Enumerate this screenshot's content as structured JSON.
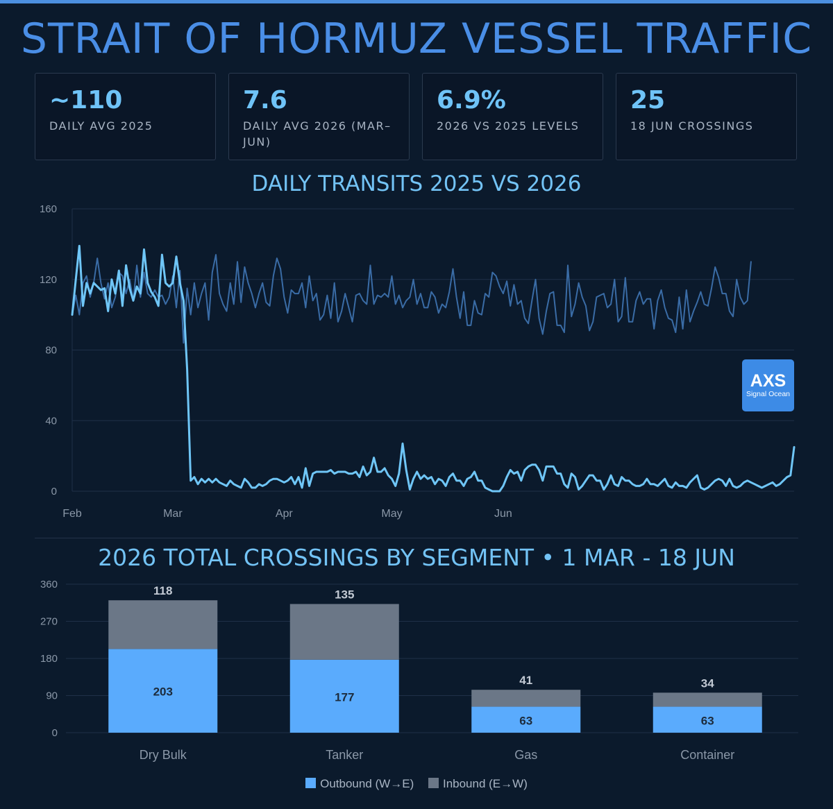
{
  "title": "STRAIT OF HORMUZ VESSEL TRAFFIC",
  "stats": [
    {
      "value": "~110",
      "label": "DAILY AVG 2025"
    },
    {
      "value": "7.6",
      "label": "DAILY AVG 2026 (MAR–JUN)"
    },
    {
      "value": "6.9%",
      "label": "2026 VS 2025 LEVELS"
    },
    {
      "value": "25",
      "label": "18 JUN CROSSINGS"
    }
  ],
  "logo": {
    "mark": "AXS",
    "sub": "Signal Ocean"
  },
  "colors": {
    "background": "#0b1a2c",
    "title": "#4a8ee6",
    "line_2025": "#3a6ca6",
    "line_2026": "#6fc6f7",
    "outbound": "#5aabfd",
    "inbound": "#6b7787"
  },
  "chart_data": [
    {
      "type": "line",
      "title": "DAILY TRANSITS 2025 VS 2026",
      "x_tick_labels": [
        "Feb",
        "Mar",
        "Apr",
        "May",
        "Jun"
      ],
      "x_tick_days": [
        0,
        28,
        59,
        89,
        120
      ],
      "ylim": [
        0,
        160
      ],
      "y_ticks": [
        0,
        40,
        80,
        120,
        160
      ],
      "grid": true,
      "series": [
        {
          "values": [
            100,
            111,
            100,
            118,
            122,
            110,
            118,
            132,
            118,
            109,
            118,
            104,
            110,
            124,
            122,
            112,
            120,
            108,
            128,
            110,
            124,
            112,
            110,
            114,
            110,
            111,
            106,
            110,
            122,
            104,
            125,
            84,
            115,
            100,
            118,
            104,
            112,
            118,
            97,
            124,
            134,
            112,
            106,
            102,
            118,
            106,
            130,
            107,
            127,
            118,
            112,
            104,
            112,
            118,
            107,
            105,
            122,
            132,
            126,
            110,
            101,
            114,
            112,
            112,
            118,
            104,
            122,
            108,
            112,
            97,
            100,
            111,
            98,
            118,
            96,
            102,
            112,
            104,
            96,
            111,
            112,
            108,
            106,
            128,
            106,
            111,
            110,
            112,
            110,
            122,
            106,
            111,
            104,
            108,
            110,
            120,
            106,
            112,
            104,
            104,
            113,
            110,
            101,
            106,
            104,
            113,
            126,
            110,
            98,
            113,
            94,
            94,
            108,
            101,
            100,
            112,
            110,
            124,
            122,
            116,
            112,
            119,
            105,
            117,
            106,
            108,
            98,
            95,
            108,
            120,
            98,
            89,
            102,
            112,
            113,
            94,
            94,
            90,
            128,
            99,
            106,
            118,
            110,
            105,
            91,
            96,
            110,
            111,
            112,
            104,
            106,
            120,
            96,
            99,
            121,
            96,
            96,
            108,
            113,
            106,
            109,
            109,
            92,
            108,
            114,
            104,
            98,
            97,
            90,
            110,
            92,
            114,
            96,
            102,
            107,
            113,
            106,
            105,
            115,
            127,
            121,
            112,
            112,
            102,
            99,
            120,
            110,
            106,
            108,
            130
          ]
        },
        {
          "values": [
            100,
            120,
            139,
            105,
            118,
            112,
            118,
            116,
            114,
            115,
            102,
            120,
            112,
            125,
            105,
            128,
            115,
            108,
            116,
            112,
            137,
            118,
            113,
            110,
            105,
            134,
            118,
            116,
            118,
            133,
            118,
            108,
            69,
            6,
            8,
            4,
            7,
            5,
            7,
            5,
            7,
            5,
            4,
            3,
            6,
            4,
            3,
            2,
            7,
            5,
            2,
            2,
            4,
            3,
            4,
            6,
            7,
            7,
            6,
            5,
            6,
            8,
            4,
            8,
            2,
            13,
            3,
            10,
            11,
            11,
            11,
            11,
            12,
            10,
            11,
            11,
            11,
            10,
            10,
            11,
            8,
            14,
            9,
            11,
            19,
            11,
            11,
            13,
            9,
            7,
            3,
            10,
            27,
            12,
            1,
            7,
            11,
            7,
            9,
            7,
            8,
            4,
            7,
            6,
            3,
            8,
            10,
            6,
            6,
            3,
            7,
            8,
            11,
            6,
            6,
            2,
            1,
            0,
            0,
            0,
            3,
            8,
            12,
            10,
            11,
            6,
            12,
            14,
            15,
            15,
            12,
            6,
            14,
            14,
            14,
            10,
            10,
            4,
            2,
            10,
            8,
            1,
            3,
            6,
            9,
            9,
            6,
            6,
            1,
            4,
            9,
            4,
            3,
            8,
            6,
            6,
            4,
            3,
            3,
            4,
            7,
            4,
            4,
            3,
            5,
            7,
            3,
            2,
            5,
            3,
            3,
            2,
            5,
            7,
            9,
            2,
            1,
            2,
            4,
            6,
            7,
            6,
            3,
            7,
            3,
            2,
            3,
            5,
            6,
            5,
            4,
            3,
            2,
            3,
            4,
            5,
            3,
            4,
            6,
            8,
            9,
            25
          ]
        }
      ]
    },
    {
      "type": "bar",
      "stacked": true,
      "title": "2026 TOTAL CROSSINGS BY SEGMENT • 1 MAR - 18 JUN",
      "categories": [
        "Dry Bulk",
        "Tanker",
        "Gas",
        "Container"
      ],
      "ylim": [
        0,
        360
      ],
      "y_ticks": [
        0,
        90,
        180,
        270,
        360
      ],
      "grid": true,
      "legend_position": "bottom",
      "series": [
        {
          "name": "Outbound (W→E)",
          "values": [
            203,
            177,
            63,
            63
          ]
        },
        {
          "name": "Inbound (E→W)",
          "values": [
            118,
            135,
            41,
            34
          ]
        }
      ]
    }
  ]
}
